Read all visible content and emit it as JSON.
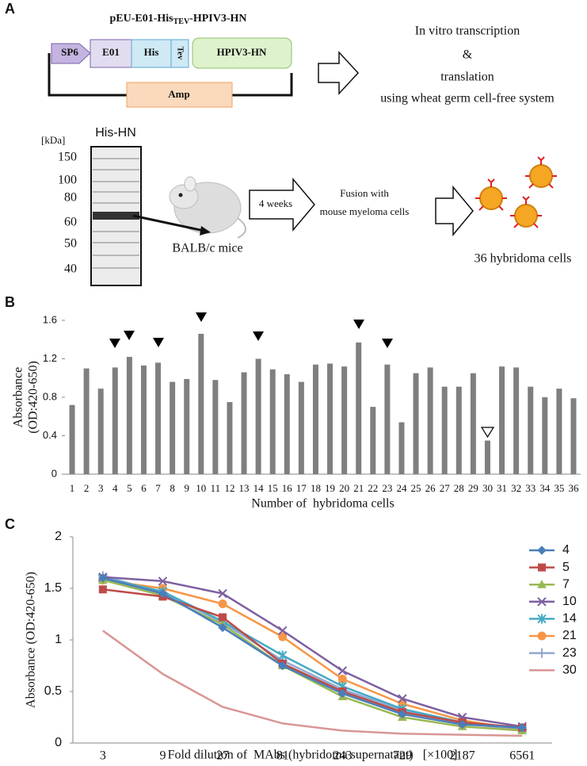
{
  "panel_labels": [
    "A",
    "B",
    "C"
  ],
  "diagram": {
    "construct_title": [
      "pEU-E01-His",
      "TEV",
      "-HPIV3-HN"
    ],
    "elements": {
      "promoter": "SP6",
      "tag1": "E01",
      "tag2": "His",
      "site": "Tev",
      "gene": "HPIV3-HN",
      "marker": "Amp"
    },
    "process": [
      "In vitro transcription",
      "&",
      "translation",
      "using wheat germ cell-free system"
    ],
    "gel_title": "His-HN",
    "gel_unit": "[kDa]",
    "gel_markers": [
      150,
      100,
      80,
      60,
      50,
      40
    ],
    "mice": "BALB/c mice",
    "interval": "4 weeks",
    "fusion": [
      "Fusion with",
      "mouse myeloma cells"
    ],
    "result": "36 hybridoma cells"
  },
  "chart_data": [
    {
      "type": "bar",
      "y_label": [
        "Absorbance",
        "(OD:420-650)"
      ],
      "x_label": "Number of  hybridoma cells",
      "categories": [
        "1",
        "2",
        "3",
        "4",
        "5",
        "6",
        "7",
        "8",
        "9",
        "10",
        "11",
        "12",
        "13",
        "14",
        "15",
        "16",
        "17",
        "18",
        "19",
        "20",
        "21",
        "22",
        "23",
        "24",
        "25",
        "26",
        "27",
        "28",
        "29",
        "30",
        "31",
        "32",
        "33",
        "34",
        "35",
        "36"
      ],
      "values": [
        0.72,
        1.1,
        0.89,
        1.11,
        1.22,
        1.13,
        1.16,
        0.96,
        0.99,
        1.46,
        0.98,
        0.75,
        1.06,
        1.2,
        1.09,
        1.04,
        0.96,
        1.14,
        1.15,
        1.12,
        1.37,
        0.7,
        1.14,
        0.54,
        1.05,
        1.11,
        0.91,
        0.91,
        1.05,
        0.35,
        1.12,
        1.11,
        0.91,
        0.8,
        0.89,
        0.79
      ],
      "color": "#7f7f7f",
      "ylim": [
        0,
        1.6
      ],
      "yticks": [
        0,
        0.4,
        0.8,
        1.2,
        1.6
      ]
    },
    {
      "type": "line",
      "y_label": "Absorbance (OD:420-650)",
      "x_label": "Fold dilution of  MAbs (hybridoma supernatant)   [×100]",
      "categories": [
        "3",
        "9",
        "27",
        "81",
        "243",
        "729",
        "2187",
        "6561"
      ],
      "series": [
        {
          "name": "4",
          "color": "#4a7ebb",
          "marker": "diamond",
          "values": [
            1.6,
            1.45,
            1.12,
            0.75,
            0.48,
            0.28,
            0.18,
            0.15
          ]
        },
        {
          "name": "5",
          "color": "#be4b48",
          "marker": "square",
          "values": [
            1.49,
            1.42,
            1.22,
            0.77,
            0.5,
            0.3,
            0.2,
            0.15
          ]
        },
        {
          "name": "7",
          "color": "#98b954",
          "marker": "triangle",
          "values": [
            1.58,
            1.43,
            1.15,
            0.75,
            0.45,
            0.25,
            0.16,
            0.12
          ]
        },
        {
          "name": "10",
          "color": "#7d60a0",
          "marker": "x",
          "values": [
            1.61,
            1.57,
            1.45,
            1.09,
            0.7,
            0.43,
            0.25,
            0.16
          ]
        },
        {
          "name": "14",
          "color": "#46aac5",
          "marker": "star",
          "values": [
            1.6,
            1.47,
            1.18,
            0.85,
            0.55,
            0.33,
            0.2,
            0.14
          ]
        },
        {
          "name": "21",
          "color": "#f79646",
          "marker": "circle",
          "values": [
            1.58,
            1.5,
            1.35,
            1.03,
            0.62,
            0.38,
            0.22,
            0.13
          ]
        },
        {
          "name": "23",
          "color": "#92a9cf",
          "marker": "plus",
          "values": [
            1.62,
            1.46,
            1.17,
            0.8,
            0.52,
            0.32,
            0.19,
            0.13
          ]
        },
        {
          "name": "30",
          "color": "#d99694",
          "marker": "none",
          "values": [
            1.09,
            0.67,
            0.35,
            0.19,
            0.12,
            0.09,
            0.08,
            0.07
          ]
        }
      ],
      "legend": "top-right",
      "ylim": [
        0,
        2
      ],
      "yticks": [
        0,
        0.5,
        1,
        1.5,
        2
      ]
    }
  ]
}
